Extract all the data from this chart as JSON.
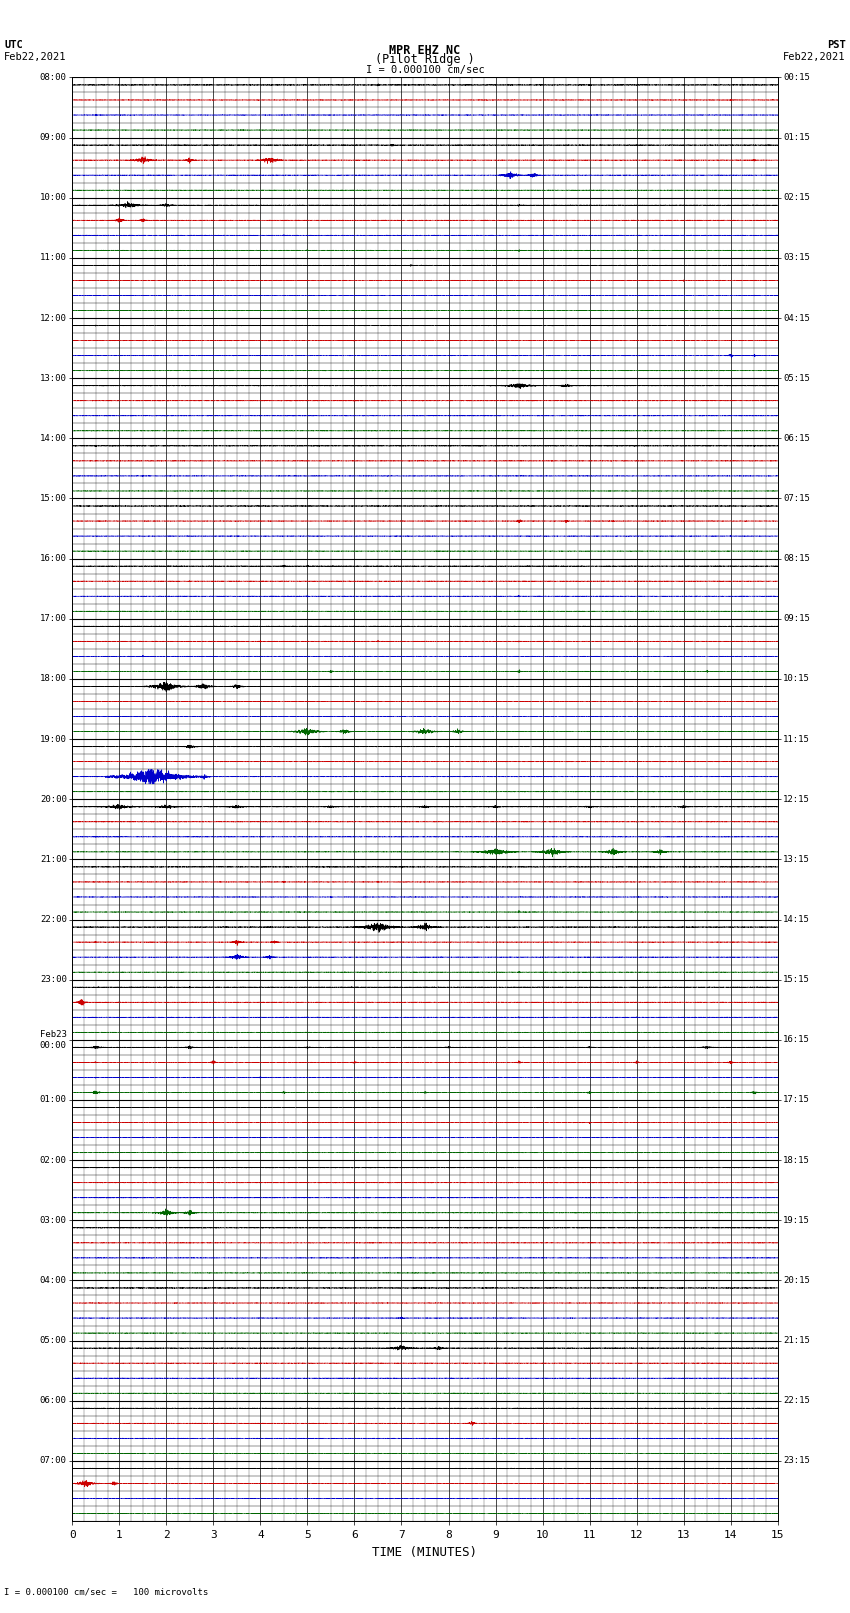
{
  "title_line1": "MPR EHZ NC",
  "title_line2": "(Pilot Ridge )",
  "title_line3": "I = 0.000100 cm/sec",
  "left_header1": "UTC",
  "left_header2": "Feb22,2021",
  "right_header1": "PST",
  "right_header2": "Feb22,2021",
  "bottom_label": "TIME (MINUTES)",
  "bottom_note": "I = 0.000100 cm/sec =   100 microvolts",
  "left_times": [
    "08:00",
    "09:00",
    "10:00",
    "11:00",
    "12:00",
    "13:00",
    "14:00",
    "15:00",
    "16:00",
    "17:00",
    "18:00",
    "19:00",
    "20:00",
    "21:00",
    "22:00",
    "23:00",
    "Feb23\n00:00",
    "01:00",
    "02:00",
    "03:00",
    "04:00",
    "05:00",
    "06:00",
    "07:00"
  ],
  "right_times": [
    "00:15",
    "01:15",
    "02:15",
    "03:15",
    "04:15",
    "05:15",
    "06:15",
    "07:15",
    "08:15",
    "09:15",
    "10:15",
    "11:15",
    "12:15",
    "13:15",
    "14:15",
    "15:15",
    "16:15",
    "17:15",
    "18:15",
    "19:15",
    "20:15",
    "21:15",
    "22:15",
    "23:15"
  ],
  "n_hours": 24,
  "n_subrows": 4,
  "x_min": 0,
  "x_max": 15,
  "x_ticks": [
    0,
    1,
    2,
    3,
    4,
    5,
    6,
    7,
    8,
    9,
    10,
    11,
    12,
    13,
    14,
    15
  ],
  "background": "#ffffff",
  "colors": [
    "#000000",
    "#cc0000",
    "#0000cc",
    "#006600"
  ],
  "bold_line_color": "#000000",
  "minor_line_color": "#000000"
}
